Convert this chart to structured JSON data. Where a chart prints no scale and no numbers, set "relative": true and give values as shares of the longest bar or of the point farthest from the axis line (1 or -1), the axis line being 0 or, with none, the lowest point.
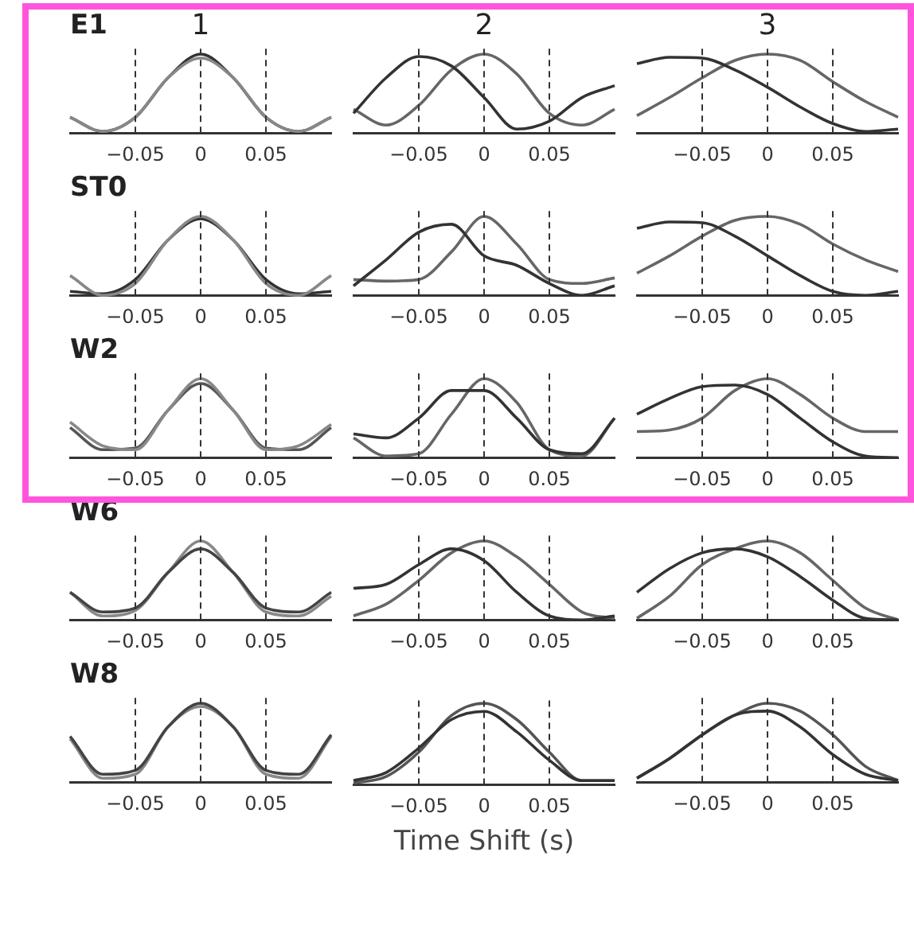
{
  "chart_data": [
    {
      "type": "line",
      "title": "1",
      "annotations": [
        "E1"
      ],
      "relative": true,
      "xlim": [
        -0.1,
        0.1
      ],
      "xticks": [
        -0.05,
        0,
        0.05
      ],
      "x": [
        -0.1,
        -0.075,
        -0.05,
        -0.025,
        0,
        0.025,
        0.05,
        0.075,
        0.1
      ],
      "ref_lines": [
        {
          "axis": "x",
          "value": -0.05,
          "line_style": "dashed",
          "color": "#333333"
        },
        {
          "axis": "x",
          "value": 0,
          "line_style": "dashed",
          "color": "#333333"
        },
        {
          "axis": "x",
          "value": 0.05,
          "line_style": "dashed",
          "color": "#333333"
        }
      ],
      "series": [
        {
          "color": "#888888",
          "values": [
            0.2,
            0.02,
            0.2,
            0.7,
            0.95,
            0.7,
            0.2,
            0.02,
            0.2
          ]
        },
        {
          "color": "#333333",
          "values": [
            0.2,
            0.02,
            0.2,
            0.7,
            1,
            0.7,
            0.2,
            0.02,
            0.2
          ]
        }
      ]
    },
    {
      "type": "line",
      "title": "2",
      "relative": true,
      "xlim": [
        -0.1,
        0.1
      ],
      "xticks": [
        -0.05,
        0,
        0.05
      ],
      "x": [
        -0.1,
        -0.075,
        -0.05,
        -0.025,
        0,
        0.025,
        0.05,
        0.075,
        0.1
      ],
      "ref_lines": [
        {
          "axis": "x",
          "value": -0.05,
          "line_style": "dashed",
          "color": "#333333"
        },
        {
          "axis": "x",
          "value": 0,
          "line_style": "dashed",
          "color": "#333333"
        },
        {
          "axis": "x",
          "value": 0.05,
          "line_style": "dashed",
          "color": "#333333"
        }
      ],
      "series": [
        {
          "color": "#333333",
          "values": [
            0.25,
            0.7,
            0.97,
            0.85,
            0.45,
            0.05,
            0.15,
            0.45,
            0.6
          ]
        },
        {
          "color": "#666666",
          "values": [
            0.3,
            0.1,
            0.35,
            0.8,
            1,
            0.75,
            0.25,
            0.1,
            0.3
          ]
        }
      ]
    },
    {
      "type": "line",
      "title": "3",
      "relative": true,
      "xlim": [
        -0.1,
        0.1
      ],
      "xticks": [
        -0.05,
        0,
        0.05
      ],
      "x": [
        -0.1,
        -0.075,
        -0.05,
        -0.025,
        0,
        0.025,
        0.05,
        0.075,
        0.1
      ],
      "ref_lines": [
        {
          "axis": "x",
          "value": -0.05,
          "line_style": "dashed",
          "color": "#333333"
        },
        {
          "axis": "x",
          "value": 0,
          "line_style": "dashed",
          "color": "#333333"
        },
        {
          "axis": "x",
          "value": 0.05,
          "line_style": "dashed",
          "color": "#333333"
        }
      ],
      "series": [
        {
          "color": "#333333",
          "values": [
            0.88,
            0.96,
            0.95,
            0.8,
            0.58,
            0.33,
            0.12,
            0.02,
            0.05
          ]
        },
        {
          "color": "#666666",
          "values": [
            0.22,
            0.45,
            0.7,
            0.92,
            1,
            0.92,
            0.65,
            0.4,
            0.2
          ]
        }
      ]
    },
    {
      "type": "line",
      "annotations": [
        "ST0"
      ],
      "relative": true,
      "xlim": [
        -0.1,
        0.1
      ],
      "xticks": [
        -0.05,
        0,
        0.05
      ],
      "x": [
        -0.1,
        -0.075,
        -0.05,
        -0.025,
        0,
        0.025,
        0.05,
        0.075,
        0.1
      ],
      "ref_lines": [
        {
          "axis": "x",
          "value": -0.05,
          "line_style": "dashed",
          "color": "#333333"
        },
        {
          "axis": "x",
          "value": 0,
          "line_style": "dashed",
          "color": "#333333"
        },
        {
          "axis": "x",
          "value": 0.05,
          "line_style": "dashed",
          "color": "#333333"
        }
      ],
      "series": [
        {
          "color": "#888888",
          "values": [
            0.25,
            0,
            0.15,
            0.7,
            1,
            0.7,
            0.15,
            0,
            0.25
          ]
        },
        {
          "color": "#333333",
          "values": [
            0.05,
            0.02,
            0.2,
            0.7,
            0.97,
            0.7,
            0.2,
            0.02,
            0.05
          ]
        }
      ]
    },
    {
      "type": "line",
      "relative": true,
      "xlim": [
        -0.1,
        0.1
      ],
      "xticks": [
        -0.05,
        0,
        0.05
      ],
      "x": [
        -0.1,
        -0.075,
        -0.05,
        -0.025,
        0,
        0.025,
        0.05,
        0.075,
        0.1
      ],
      "ref_lines": [
        {
          "axis": "x",
          "value": -0.05,
          "line_style": "dashed",
          "color": "#333333"
        },
        {
          "axis": "x",
          "value": 0,
          "line_style": "dashed",
          "color": "#333333"
        },
        {
          "axis": "x",
          "value": 0.05,
          "line_style": "dashed",
          "color": "#333333"
        }
      ],
      "series": [
        {
          "color": "#333333",
          "values": [
            0.12,
            0.45,
            0.8,
            0.9,
            0.5,
            0.38,
            0.15,
            0,
            0.12
          ]
        },
        {
          "color": "#666666",
          "values": [
            0.2,
            0.18,
            0.2,
            0.55,
            1,
            0.65,
            0.2,
            0.15,
            0.22
          ]
        }
      ]
    },
    {
      "type": "line",
      "relative": true,
      "xlim": [
        -0.1,
        0.1
      ],
      "xticks": [
        -0.05,
        0,
        0.05
      ],
      "x": [
        -0.1,
        -0.075,
        -0.05,
        -0.025,
        0,
        0.025,
        0.05,
        0.075,
        0.1
      ],
      "ref_lines": [
        {
          "axis": "x",
          "value": -0.05,
          "line_style": "dashed",
          "color": "#333333"
        },
        {
          "axis": "x",
          "value": 0,
          "line_style": "dashed",
          "color": "#333333"
        },
        {
          "axis": "x",
          "value": 0.05,
          "line_style": "dashed",
          "color": "#333333"
        }
      ],
      "series": [
        {
          "color": "#333333",
          "values": [
            0.85,
            0.93,
            0.92,
            0.75,
            0.5,
            0.25,
            0.05,
            0,
            0.05
          ]
        },
        {
          "color": "#666666",
          "values": [
            0.28,
            0.5,
            0.75,
            0.95,
            1,
            0.9,
            0.65,
            0.45,
            0.3
          ]
        }
      ]
    },
    {
      "type": "line",
      "annotations": [
        "W2"
      ],
      "relative": true,
      "xlim": [
        -0.1,
        0.1
      ],
      "xticks": [
        -0.05,
        0,
        0.05
      ],
      "x": [
        -0.1,
        -0.075,
        -0.05,
        -0.025,
        0,
        0.025,
        0.05,
        0.075,
        0.1
      ],
      "ref_lines": [
        {
          "axis": "x",
          "value": -0.05,
          "line_style": "dashed",
          "color": "#333333"
        },
        {
          "axis": "x",
          "value": 0,
          "line_style": "dashed",
          "color": "#333333"
        },
        {
          "axis": "x",
          "value": 0.05,
          "line_style": "dashed",
          "color": "#333333"
        }
      ],
      "series": [
        {
          "color": "#888888",
          "values": [
            0.45,
            0.15,
            0.1,
            0.6,
            1,
            0.6,
            0.1,
            0.15,
            0.42
          ]
        },
        {
          "color": "#555555",
          "values": [
            0.38,
            0.1,
            0.12,
            0.6,
            0.94,
            0.6,
            0.12,
            0.1,
            0.38
          ]
        }
      ]
    },
    {
      "type": "line",
      "relative": true,
      "xlim": [
        -0.1,
        0.1
      ],
      "xticks": [
        -0.05,
        0,
        0.05
      ],
      "x": [
        -0.1,
        -0.075,
        -0.05,
        -0.025,
        0,
        0.025,
        0.05,
        0.075,
        0.1
      ],
      "ref_lines": [
        {
          "axis": "x",
          "value": -0.05,
          "line_style": "dashed",
          "color": "#333333"
        },
        {
          "axis": "x",
          "value": 0,
          "line_style": "dashed",
          "color": "#333333"
        },
        {
          "axis": "x",
          "value": 0.05,
          "line_style": "dashed",
          "color": "#333333"
        }
      ],
      "series": [
        {
          "color": "#333333",
          "values": [
            0.3,
            0.25,
            0.5,
            0.85,
            0.85,
            0.5,
            0.1,
            0.05,
            0.5
          ]
        },
        {
          "color": "#666666",
          "values": [
            0.25,
            0.02,
            0.05,
            0.55,
            1,
            0.7,
            0.1,
            0.02,
            0.5
          ]
        }
      ]
    },
    {
      "type": "line",
      "relative": true,
      "xlim": [
        -0.1,
        0.1
      ],
      "xticks": [
        -0.05,
        0,
        0.05
      ],
      "x": [
        -0.1,
        -0.075,
        -0.05,
        -0.025,
        0,
        0.025,
        0.05,
        0.075,
        0.1
      ],
      "ref_lines": [
        {
          "axis": "x",
          "value": -0.05,
          "line_style": "dashed",
          "color": "#333333"
        },
        {
          "axis": "x",
          "value": 0,
          "line_style": "dashed",
          "color": "#333333"
        },
        {
          "axis": "x",
          "value": 0.05,
          "line_style": "dashed",
          "color": "#333333"
        }
      ],
      "series": [
        {
          "color": "#333333",
          "values": [
            0.55,
            0.75,
            0.9,
            0.92,
            0.8,
            0.5,
            0.2,
            0.02,
            0
          ]
        },
        {
          "color": "#666666",
          "values": [
            0.33,
            0.35,
            0.5,
            0.85,
            1,
            0.8,
            0.5,
            0.33,
            0.33
          ]
        }
      ]
    },
    {
      "type": "line",
      "annotations": [
        "W6"
      ],
      "relative": true,
      "xlim": [
        -0.1,
        0.1
      ],
      "xticks": [
        -0.05,
        0,
        0.05
      ],
      "x": [
        -0.1,
        -0.075,
        -0.05,
        -0.025,
        0,
        0.025,
        0.05,
        0.075,
        0.1
      ],
      "ref_lines": [
        {
          "axis": "x",
          "value": -0.05,
          "line_style": "dashed",
          "color": "#333333"
        },
        {
          "axis": "x",
          "value": 0,
          "line_style": "dashed",
          "color": "#333333"
        },
        {
          "axis": "x",
          "value": 0.05,
          "line_style": "dashed",
          "color": "#333333"
        }
      ],
      "series": [
        {
          "color": "#444444",
          "values": [
            0.35,
            0.1,
            0.15,
            0.6,
            0.9,
            0.6,
            0.15,
            0.1,
            0.35
          ]
        },
        {
          "color": "#888888",
          "values": [
            0.35,
            0.05,
            0.12,
            0.6,
            1,
            0.6,
            0.1,
            0.05,
            0.3
          ]
        }
      ]
    },
    {
      "type": "line",
      "relative": true,
      "xlim": [
        -0.1,
        0.1
      ],
      "xticks": [
        -0.05,
        0,
        0.05
      ],
      "x": [
        -0.1,
        -0.075,
        -0.05,
        -0.025,
        0,
        0.025,
        0.05,
        0.075,
        0.1
      ],
      "ref_lines": [
        {
          "axis": "x",
          "value": -0.05,
          "line_style": "dashed",
          "color": "#333333"
        },
        {
          "axis": "x",
          "value": 0,
          "line_style": "dashed",
          "color": "#333333"
        },
        {
          "axis": "x",
          "value": 0.05,
          "line_style": "dashed",
          "color": "#333333"
        }
      ],
      "series": [
        {
          "color": "#333333",
          "values": [
            0.4,
            0.45,
            0.7,
            0.9,
            0.75,
            0.35,
            0.05,
            0,
            0.05
          ]
        },
        {
          "color": "#666666",
          "values": [
            0.05,
            0.2,
            0.5,
            0.85,
            1,
            0.8,
            0.45,
            0.1,
            0.02
          ]
        }
      ]
    },
    {
      "type": "line",
      "relative": true,
      "xlim": [
        -0.1,
        0.1
      ],
      "xticks": [
        -0.05,
        0,
        0.05
      ],
      "x": [
        -0.1,
        -0.075,
        -0.05,
        -0.025,
        0,
        0.025,
        0.05,
        0.075,
        0.1
      ],
      "ref_lines": [
        {
          "axis": "x",
          "value": -0.05,
          "line_style": "dashed",
          "color": "#333333"
        },
        {
          "axis": "x",
          "value": 0,
          "line_style": "dashed",
          "color": "#333333"
        },
        {
          "axis": "x",
          "value": 0.05,
          "line_style": "dashed",
          "color": "#333333"
        }
      ],
      "series": [
        {
          "color": "#333333",
          "values": [
            0.35,
            0.65,
            0.85,
            0.9,
            0.8,
            0.55,
            0.25,
            0.02,
            0
          ]
        },
        {
          "color": "#666666",
          "values": [
            0.02,
            0.3,
            0.7,
            0.9,
            1,
            0.85,
            0.5,
            0.15,
            0
          ]
        }
      ]
    },
    {
      "type": "line",
      "annotations": [
        "W8"
      ],
      "relative": true,
      "xlim": [
        -0.1,
        0.1
      ],
      "xticks": [
        -0.05,
        0,
        0.05
      ],
      "x": [
        -0.1,
        -0.075,
        -0.05,
        -0.025,
        0,
        0.025,
        0.05,
        0.075,
        0.1
      ],
      "ref_lines": [
        {
          "axis": "x",
          "value": -0.05,
          "line_style": "dashed",
          "color": "#333333"
        },
        {
          "axis": "x",
          "value": 0,
          "line_style": "dashed",
          "color": "#333333"
        },
        {
          "axis": "x",
          "value": 0.05,
          "line_style": "dashed",
          "color": "#333333"
        }
      ],
      "series": [
        {
          "color": "#444444",
          "values": [
            0.58,
            0.1,
            0.15,
            0.7,
            1,
            0.7,
            0.15,
            0.1,
            0.6
          ]
        },
        {
          "color": "#888888",
          "values": [
            0.55,
            0.05,
            0.1,
            0.7,
            0.96,
            0.7,
            0.1,
            0.05,
            0.58
          ]
        }
      ]
    },
    {
      "type": "line",
      "xlabel": "Time Shift (s)",
      "relative": true,
      "xlim": [
        -0.1,
        0.1
      ],
      "xticks": [
        -0.05,
        0,
        0.05
      ],
      "x": [
        -0.1,
        -0.075,
        -0.05,
        -0.025,
        0,
        0.025,
        0.05,
        0.075,
        0.1
      ],
      "ref_lines": [
        {
          "axis": "x",
          "value": -0.05,
          "line_style": "dashed",
          "color": "#333333"
        },
        {
          "axis": "x",
          "value": 0,
          "line_style": "dashed",
          "color": "#333333"
        },
        {
          "axis": "x",
          "value": 0.05,
          "line_style": "dashed",
          "color": "#333333"
        }
      ],
      "series": [
        {
          "color": "#333333",
          "values": [
            0.05,
            0.15,
            0.45,
            0.8,
            0.9,
            0.65,
            0.3,
            0.05,
            0.05
          ]
        },
        {
          "color": "#555555",
          "values": [
            0.02,
            0.1,
            0.4,
            0.85,
            1,
            0.8,
            0.4,
            0.05,
            0.05
          ]
        }
      ]
    },
    {
      "type": "line",
      "relative": true,
      "xlim": [
        -0.1,
        0.1
      ],
      "xticks": [
        -0.05,
        0,
        0.05
      ],
      "x": [
        -0.1,
        -0.075,
        -0.05,
        -0.025,
        0,
        0.025,
        0.05,
        0.075,
        0.1
      ],
      "ref_lines": [
        {
          "axis": "x",
          "value": -0.05,
          "line_style": "dashed",
          "color": "#333333"
        },
        {
          "axis": "x",
          "value": 0,
          "line_style": "dashed",
          "color": "#333333"
        },
        {
          "axis": "x",
          "value": 0.05,
          "line_style": "dashed",
          "color": "#333333"
        }
      ],
      "series": [
        {
          "color": "#333333",
          "values": [
            0.05,
            0.3,
            0.6,
            0.85,
            0.9,
            0.7,
            0.35,
            0.1,
            0.02
          ]
        },
        {
          "color": "#555555",
          "values": [
            0.05,
            0.3,
            0.6,
            0.85,
            1,
            0.9,
            0.6,
            0.2,
            0.02
          ]
        }
      ]
    }
  ]
}
